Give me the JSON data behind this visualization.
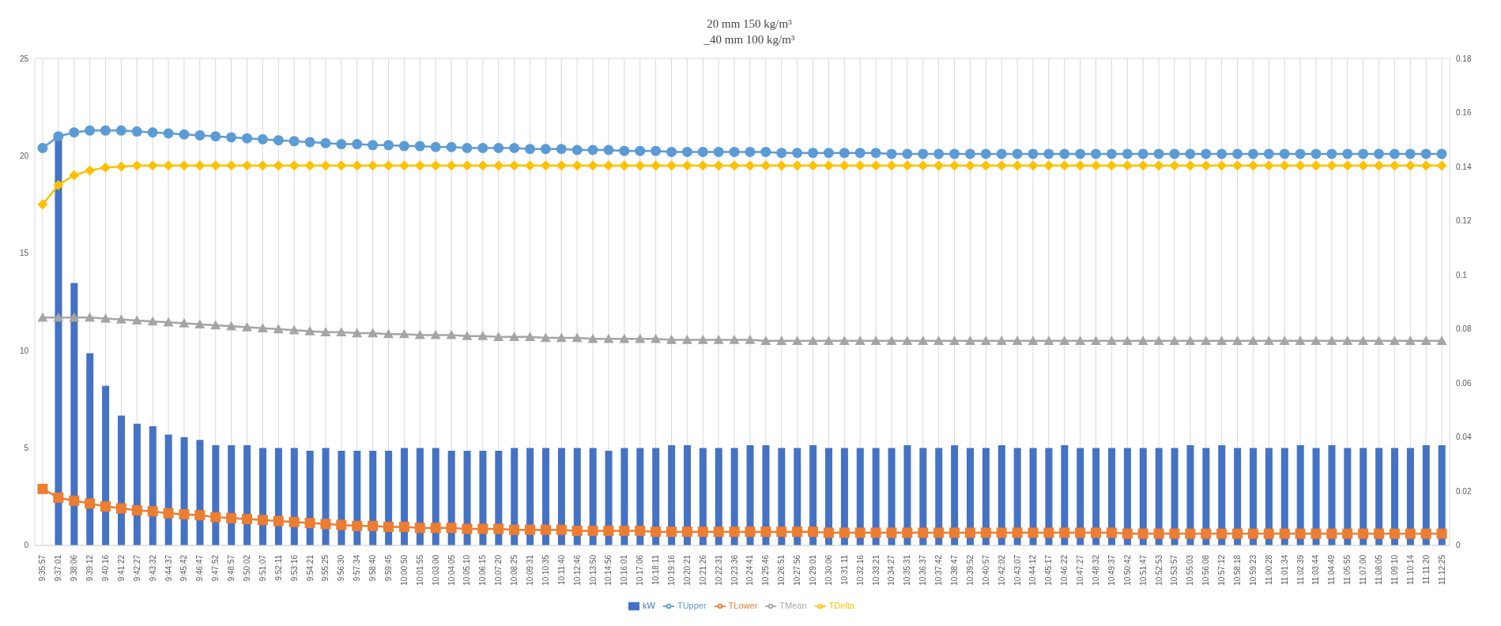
{
  "chart_data": {
    "type": "bar",
    "title": "20 mm 150 kg/m³",
    "subtitle": "_40 mm 100 kg/m³",
    "categories": [
      "9:35:57",
      "9:37:01",
      "9:38:06",
      "9:39:12",
      "9:40:16",
      "9:41:22",
      "9:42:27",
      "9:43:32",
      "9:44:37",
      "9:45:42",
      "9:46:47",
      "9:47:52",
      "9:48:57",
      "9:50:02",
      "9:51:07",
      "9:52:11",
      "9:53:16",
      "9:54:21",
      "9:55:25",
      "9:56:30",
      "9:57:34",
      "9:58:40",
      "9:59:45",
      "10:00:50",
      "10:01:55",
      "10:03:00",
      "10:04:05",
      "10:05:10",
      "10:06:15",
      "10:07:20",
      "10:08:25",
      "10:09:31",
      "10:10:35",
      "10:11:40",
      "10:12:46",
      "10:13:50",
      "10:14:56",
      "10:16:01",
      "10:17:06",
      "10:18:11",
      "10:19:16",
      "10:20:21",
      "10:21:26",
      "10:22:31",
      "10:23:36",
      "10:24:41",
      "10:25:46",
      "10:26:51",
      "10:27:56",
      "10:29:01",
      "10:30:06",
      "10:31:11",
      "10:32:16",
      "10:33:21",
      "10:34:27",
      "10:35:31",
      "10:36:37",
      "10:37:42",
      "10:38:47",
      "10:39:52",
      "10:40:57",
      "10:42:02",
      "10:43:07",
      "10:44:12",
      "10:45:17",
      "10:46:22",
      "10:47:27",
      "10:48:32",
      "10:49:37",
      "10:50:42",
      "10:51:47",
      "10:52:53",
      "10:53:57",
      "10:55:03",
      "10:56:08",
      "10:57:12",
      "10:58:18",
      "10:59:23",
      "11:00:28",
      "11:01:34",
      "11:02:39",
      "11:03:44",
      "11:04:49",
      "11:05:55",
      "11:07:00",
      "11:08:05",
      "11:09:10",
      "11:10:14",
      "11:11:20",
      "11:12:25"
    ],
    "series": [
      {
        "name": "kW",
        "axis": "y2",
        "color": "#4472c4",
        "values": [
          null,
          0.15,
          0.097,
          0.071,
          0.059,
          0.048,
          0.045,
          0.044,
          0.041,
          0.04,
          0.039,
          0.037,
          0.037,
          0.037,
          0.036,
          0.036,
          0.036,
          0.035,
          0.036,
          0.035,
          0.035,
          0.035,
          0.035,
          0.036,
          0.036,
          0.036,
          0.035,
          0.035,
          0.035,
          0.035,
          0.036,
          0.036,
          0.036,
          0.036,
          0.036,
          0.036,
          0.035,
          0.036,
          0.036,
          0.036,
          0.037,
          0.037,
          0.036,
          0.036,
          0.036,
          0.037,
          0.037,
          0.036,
          0.036,
          0.037,
          0.036,
          0.036,
          0.036,
          0.036,
          0.036,
          0.037,
          0.036,
          0.036,
          0.037,
          0.036,
          0.036,
          0.037,
          0.036,
          0.036,
          0.036,
          0.037,
          0.036,
          0.036,
          0.036,
          0.036,
          0.036,
          0.036,
          0.036,
          0.037,
          0.036,
          0.037,
          0.036,
          0.036,
          0.036,
          0.036,
          0.037,
          0.036,
          0.037,
          0.036,
          0.036,
          0.036,
          0.036,
          0.036,
          0.037,
          0.037
        ]
      },
      {
        "name": "TUpper",
        "type": "line",
        "marker": "circle",
        "color": "#5b9bd5",
        "values": [
          20.4,
          21.0,
          21.2,
          21.3,
          21.3,
          21.3,
          21.25,
          21.2,
          21.15,
          21.1,
          21.05,
          21.0,
          20.95,
          20.9,
          20.85,
          20.8,
          20.75,
          20.7,
          20.65,
          20.6,
          20.6,
          20.55,
          20.55,
          20.5,
          20.5,
          20.45,
          20.45,
          20.4,
          20.4,
          20.4,
          20.4,
          20.35,
          20.35,
          20.35,
          20.3,
          20.3,
          20.3,
          20.25,
          20.25,
          20.25,
          20.2,
          20.2,
          20.2,
          20.2,
          20.2,
          20.2,
          20.2,
          20.15,
          20.15,
          20.15,
          20.15,
          20.15,
          20.15,
          20.15,
          20.1,
          20.1,
          20.1,
          20.1,
          20.1,
          20.1,
          20.1,
          20.1,
          20.1,
          20.1,
          20.1,
          20.1,
          20.1,
          20.1,
          20.1,
          20.1,
          20.1,
          20.1,
          20.1,
          20.1,
          20.1,
          20.1,
          20.1,
          20.1,
          20.1,
          20.1,
          20.1,
          20.1,
          20.1,
          20.1,
          20.1,
          20.1,
          20.1,
          20.1,
          20.1,
          20.1
        ]
      },
      {
        "name": "TLower",
        "type": "line",
        "marker": "square",
        "color": "#ed7d31",
        "values": [
          2.9,
          2.45,
          2.3,
          2.15,
          2.0,
          1.9,
          1.8,
          1.75,
          1.65,
          1.6,
          1.55,
          1.45,
          1.4,
          1.35,
          1.3,
          1.25,
          1.2,
          1.15,
          1.1,
          1.05,
          1.0,
          1.0,
          0.95,
          0.95,
          0.9,
          0.9,
          0.9,
          0.85,
          0.85,
          0.85,
          0.8,
          0.8,
          0.8,
          0.8,
          0.75,
          0.75,
          0.75,
          0.75,
          0.75,
          0.7,
          0.7,
          0.7,
          0.7,
          0.7,
          0.7,
          0.7,
          0.7,
          0.7,
          0.7,
          0.7,
          0.65,
          0.65,
          0.65,
          0.65,
          0.65,
          0.65,
          0.65,
          0.65,
          0.65,
          0.65,
          0.65,
          0.65,
          0.65,
          0.65,
          0.65,
          0.65,
          0.65,
          0.65,
          0.65,
          0.6,
          0.6,
          0.6,
          0.6,
          0.6,
          0.6,
          0.6,
          0.6,
          0.6,
          0.6,
          0.6,
          0.6,
          0.6,
          0.6,
          0.6,
          0.6,
          0.6,
          0.6,
          0.6,
          0.6,
          0.6
        ]
      },
      {
        "name": "TMean",
        "type": "line",
        "marker": "triangle",
        "color": "#a5a5a5",
        "values": [
          11.7,
          11.7,
          11.7,
          11.7,
          11.65,
          11.6,
          11.55,
          11.5,
          11.45,
          11.4,
          11.35,
          11.3,
          11.25,
          11.2,
          11.15,
          11.1,
          11.05,
          11.0,
          10.95,
          10.95,
          10.9,
          10.9,
          10.85,
          10.85,
          10.8,
          10.8,
          10.8,
          10.75,
          10.75,
          10.7,
          10.7,
          10.7,
          10.65,
          10.65,
          10.65,
          10.6,
          10.6,
          10.6,
          10.6,
          10.6,
          10.55,
          10.55,
          10.55,
          10.55,
          10.55,
          10.55,
          10.5,
          10.5,
          10.5,
          10.5,
          10.5,
          10.5,
          10.5,
          10.5,
          10.5,
          10.5,
          10.5,
          10.5,
          10.5,
          10.5,
          10.5,
          10.5,
          10.5,
          10.5,
          10.5,
          10.5,
          10.5,
          10.5,
          10.5,
          10.5,
          10.5,
          10.5,
          10.5,
          10.5,
          10.5,
          10.5,
          10.5,
          10.5,
          10.5,
          10.5,
          10.5,
          10.5,
          10.5,
          10.5,
          10.5,
          10.5,
          10.5,
          10.5,
          10.5,
          10.5
        ]
      },
      {
        "name": "TDelta",
        "type": "line",
        "marker": "diamond",
        "color": "#ffc000",
        "values": [
          17.5,
          18.5,
          19.0,
          19.25,
          19.4,
          19.45,
          19.5,
          19.5,
          19.5,
          19.5,
          19.5,
          19.5,
          19.5,
          19.5,
          19.5,
          19.5,
          19.5,
          19.5,
          19.5,
          19.5,
          19.5,
          19.5,
          19.5,
          19.5,
          19.5,
          19.5,
          19.5,
          19.5,
          19.5,
          19.5,
          19.5,
          19.5,
          19.5,
          19.5,
          19.5,
          19.5,
          19.5,
          19.5,
          19.5,
          19.5,
          19.5,
          19.5,
          19.5,
          19.5,
          19.5,
          19.5,
          19.5,
          19.5,
          19.5,
          19.5,
          19.5,
          19.5,
          19.5,
          19.5,
          19.5,
          19.5,
          19.5,
          19.5,
          19.5,
          19.5,
          19.5,
          19.5,
          19.5,
          19.5,
          19.5,
          19.5,
          19.5,
          19.5,
          19.5,
          19.5,
          19.5,
          19.5,
          19.5,
          19.5,
          19.5,
          19.5,
          19.5,
          19.5,
          19.5,
          19.5,
          19.5,
          19.5,
          19.5,
          19.5,
          19.5,
          19.5,
          19.5,
          19.5,
          19.5,
          19.5
        ]
      }
    ],
    "ylim": [
      0,
      25
    ],
    "yticks": [
      0,
      5,
      10,
      15,
      20,
      25
    ],
    "y2lim": [
      0,
      0.18
    ],
    "y2ticks": [
      0,
      0.02,
      0.04,
      0.06,
      0.08,
      0.1,
      0.12,
      0.14,
      0.16,
      0.18
    ],
    "grid": true,
    "legend": "bottom"
  }
}
